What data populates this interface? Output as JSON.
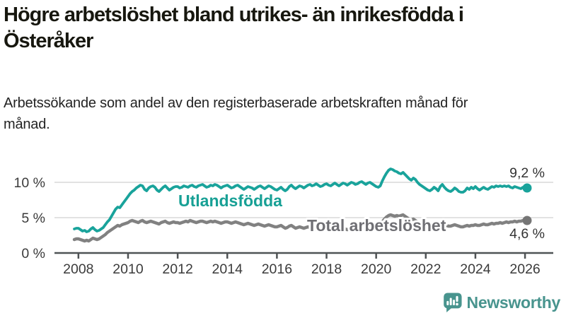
{
  "title": "Högre arbetslöshet bland utrikes- än inrikesfödda i Österåker",
  "subtitle": "Arbetssökande som andel av den registerbaserade arbetskraften månad för månad.",
  "branding": {
    "logo_text": "Newsworthy",
    "logo_icon": "newsworthy-chart-bubble-icon",
    "logo_color": "#48948e"
  },
  "colors": {
    "utlandsfodda": "#19a39b",
    "total": "#818181",
    "gridline": "#d9d9d9",
    "axis": "#4f5355"
  },
  "chart_data": {
    "type": "line",
    "title": "Högre arbetslöshet bland utrikes- än inrikesfödda i Österåker",
    "subtitle": "Arbetssökande som andel av den registerbaserade arbetskraften månad för månad.",
    "unit": "%",
    "x_start": "2007-11",
    "x_end": "2026-02",
    "x_interval": "monthly",
    "x_ticks": [
      2008,
      2010,
      2012,
      2014,
      2016,
      2018,
      2020,
      2022,
      2024,
      2026
    ],
    "y_ticks": [
      0,
      5,
      10
    ],
    "y_tick_labels": [
      "0 %",
      "5 %",
      "10 %"
    ],
    "ylim": [
      0,
      12.5
    ],
    "grid": true,
    "legend_position": "inline-labels",
    "series": [
      {
        "name": "Utlandsfödda",
        "color": "#19a39b",
        "end_value": 9.2,
        "end_label": "9,2 %",
        "values": [
          3.4,
          3.5,
          3.5,
          3.3,
          3.1,
          3.2,
          3.0,
          3.1,
          3.4,
          3.6,
          3.3,
          3.1,
          3.2,
          3.4,
          3.6,
          4.0,
          4.4,
          4.7,
          5.2,
          5.7,
          6.2,
          6.5,
          6.4,
          6.8,
          7.2,
          7.6,
          8.0,
          8.4,
          8.7,
          8.9,
          9.2,
          9.4,
          9.6,
          9.5,
          9.0,
          8.8,
          9.2,
          9.4,
          9.5,
          9.3,
          8.9,
          8.7,
          9.0,
          9.3,
          9.5,
          9.2,
          8.9,
          9.1,
          9.3,
          9.4,
          9.4,
          9.2,
          9.3,
          9.5,
          9.4,
          9.3,
          9.5,
          9.6,
          9.4,
          9.3,
          9.5,
          9.6,
          9.7,
          9.5,
          9.3,
          9.4,
          9.6,
          9.5,
          9.7,
          9.6,
          9.4,
          9.2,
          9.4,
          9.5,
          9.6,
          9.4,
          9.2,
          9.3,
          9.5,
          9.6,
          9.4,
          9.2,
          9.0,
          9.2,
          9.4,
          9.3,
          9.2,
          9.0,
          9.2,
          9.4,
          9.5,
          9.3,
          9.1,
          9.3,
          9.5,
          9.4,
          9.2,
          9.0,
          8.9,
          9.1,
          9.3,
          9.0,
          8.8,
          9.0,
          9.4,
          9.6,
          9.3,
          9.1,
          9.3,
          9.5,
          9.4,
          9.2,
          9.4,
          9.6,
          9.7,
          9.5,
          9.6,
          9.8,
          9.6,
          9.4,
          9.5,
          9.7,
          9.8,
          9.6,
          9.5,
          9.7,
          9.9,
          9.7,
          9.5,
          9.7,
          9.9,
          9.8,
          9.6,
          9.8,
          10.0,
          9.9,
          9.7,
          9.8,
          10.0,
          10.1,
          9.9,
          9.7,
          9.9,
          10.0,
          9.8,
          9.6,
          9.4,
          9.3,
          9.5,
          10.2,
          10.8,
          11.3,
          11.7,
          11.9,
          11.8,
          11.6,
          11.5,
          11.3,
          11.2,
          11.4,
          11.1,
          10.8,
          10.5,
          10.3,
          10.6,
          10.4,
          10.0,
          9.7,
          9.5,
          9.3,
          9.1,
          8.9,
          8.8,
          9.0,
          9.3,
          9.1,
          8.8,
          9.4,
          9.7,
          9.3,
          9.0,
          8.8,
          8.7,
          8.9,
          9.2,
          9.0,
          8.7,
          8.6,
          8.6,
          8.8,
          9.2,
          9.0,
          9.3,
          9.1,
          9.4,
          9.1,
          8.9,
          9.1,
          9.3,
          9.1,
          9.0,
          9.2,
          9.4,
          9.3,
          9.5,
          9.4,
          9.5,
          9.4,
          9.5,
          9.4,
          9.5,
          9.3,
          9.2,
          9.4,
          9.3,
          9.2,
          9.1,
          9.3,
          9.3,
          9.2
        ]
      },
      {
        "name": "Total arbetslöshet",
        "color": "#818181",
        "end_value": 4.6,
        "end_label": "4,6 %",
        "values": [
          1.9,
          2.0,
          2.0,
          1.9,
          1.8,
          1.7,
          1.8,
          1.7,
          1.9,
          2.1,
          2.0,
          1.9,
          2.0,
          2.2,
          2.4,
          2.6,
          2.9,
          3.1,
          3.3,
          3.5,
          3.7,
          3.9,
          3.8,
          4.0,
          4.1,
          4.2,
          4.3,
          4.5,
          4.6,
          4.5,
          4.4,
          4.3,
          4.5,
          4.6,
          4.4,
          4.3,
          4.4,
          4.5,
          4.4,
          4.3,
          4.2,
          4.1,
          4.3,
          4.4,
          4.5,
          4.3,
          4.2,
          4.3,
          4.4,
          4.3,
          4.3,
          4.2,
          4.3,
          4.4,
          4.5,
          4.4,
          4.6,
          4.5,
          4.4,
          4.3,
          4.4,
          4.5,
          4.5,
          4.4,
          4.3,
          4.4,
          4.5,
          4.4,
          4.5,
          4.4,
          4.3,
          4.2,
          4.3,
          4.4,
          4.4,
          4.3,
          4.2,
          4.3,
          4.4,
          4.3,
          4.2,
          4.1,
          4.0,
          4.1,
          4.2,
          4.1,
          4.0,
          3.9,
          4.0,
          4.1,
          4.0,
          3.9,
          3.8,
          3.9,
          4.0,
          3.9,
          3.8,
          3.7,
          3.7,
          3.8,
          3.9,
          3.7,
          3.5,
          3.6,
          3.8,
          3.9,
          3.7,
          3.5,
          3.6,
          3.7,
          3.6,
          3.5,
          3.6,
          3.7,
          3.6,
          3.4,
          3.3,
          3.5,
          3.6,
          3.5,
          3.4,
          3.5,
          3.5,
          3.4,
          3.3,
          3.4,
          3.5,
          3.4,
          3.3,
          3.4,
          3.5,
          3.4,
          3.3,
          3.4,
          3.5,
          3.4,
          3.3,
          3.4,
          3.5,
          3.6,
          3.5,
          3.4,
          3.5,
          3.6,
          3.5,
          3.6,
          3.7,
          3.6,
          3.8,
          4.4,
          4.8,
          5.1,
          5.3,
          5.4,
          5.3,
          5.2,
          5.3,
          5.2,
          5.3,
          5.4,
          5.2,
          5.0,
          4.8,
          4.7,
          4.8,
          4.6,
          4.4,
          4.3,
          4.2,
          4.1,
          4.0,
          3.9,
          3.8,
          3.9,
          4.0,
          3.9,
          3.8,
          4.0,
          4.1,
          4.0,
          3.9,
          3.8,
          3.8,
          3.9,
          4.0,
          3.9,
          3.8,
          3.7,
          3.7,
          3.8,
          3.9,
          3.8,
          3.9,
          3.9,
          4.0,
          3.9,
          3.9,
          4.0,
          4.1,
          4.0,
          4.0,
          4.1,
          4.2,
          4.1,
          4.2,
          4.2,
          4.3,
          4.2,
          4.3,
          4.4,
          4.3,
          4.4,
          4.4,
          4.5,
          4.4,
          4.5,
          4.5,
          4.6,
          4.6,
          4.6
        ]
      }
    ]
  }
}
